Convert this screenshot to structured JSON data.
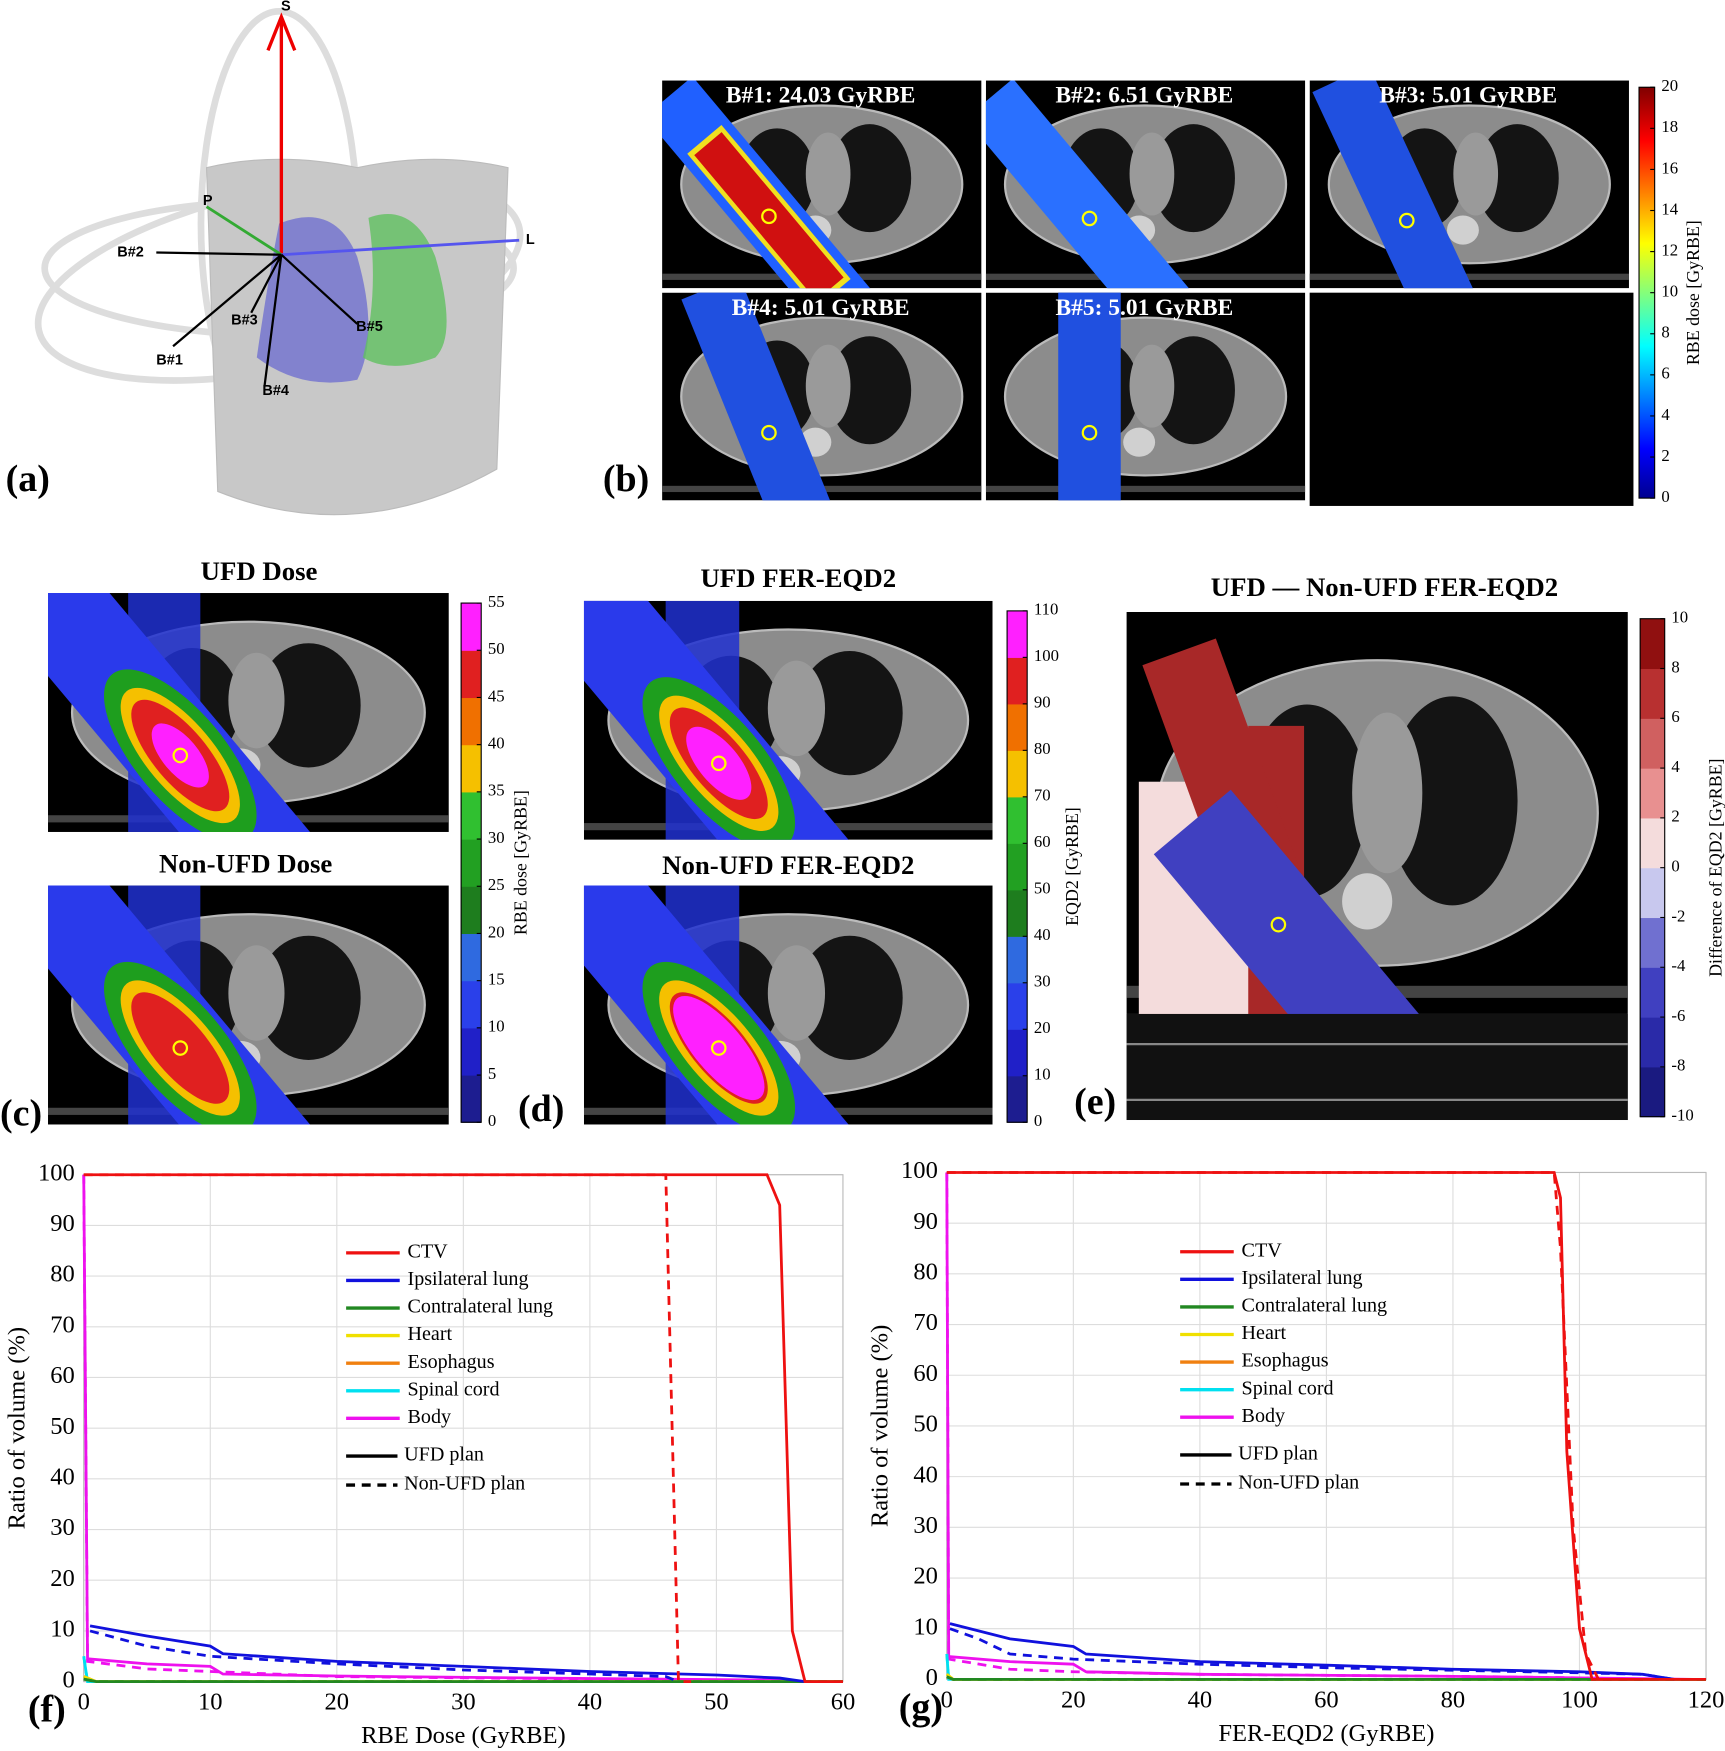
{
  "panels": {
    "a": {
      "label": "(a)",
      "axes": [
        "S",
        "P",
        "L"
      ],
      "beams": [
        "B#2",
        "B#3",
        "B#5",
        "B#1",
        "B#4"
      ]
    },
    "b": {
      "label": "(b)",
      "beams": [
        "B#1: 24.03 GyRBE",
        "B#2: 6.51 GyRBE",
        "B#3: 5.01 GyRBE",
        "B#4: 5.01 GyRBE",
        "B#5: 5.01 GyRBE"
      ],
      "colorbar": {
        "label": "RBE dose [GyRBE]",
        "lim": [
          0,
          20
        ],
        "ticks": [
          0,
          2,
          4,
          6,
          8,
          10,
          12,
          14,
          16,
          18,
          20
        ]
      }
    },
    "c": {
      "label": "(c)",
      "titles": [
        "UFD Dose",
        "Non-UFD Dose"
      ],
      "colorbar": {
        "label": "RBE dose [GyRBE]",
        "lim": [
          0,
          55
        ],
        "ticks": [
          0,
          5,
          10,
          15,
          20,
          25,
          30,
          35,
          40,
          45,
          50,
          55
        ]
      }
    },
    "d": {
      "label": "(d)",
      "titles": [
        "UFD FER-EQD2",
        "Non-UFD FER-EQD2"
      ],
      "colorbar": {
        "label": "EQD2 [GyRBE]",
        "lim": [
          0,
          110
        ],
        "ticks": [
          0,
          10,
          20,
          30,
          40,
          50,
          60,
          70,
          80,
          90,
          100,
          110
        ]
      }
    },
    "e": {
      "label": "(e)",
      "title": "UFD — Non-UFD FER-EQD2",
      "colorbar": {
        "label": "Difference of EQD2 [GyRBE]",
        "lim": [
          -10,
          10
        ],
        "ticks": [
          -10,
          -8,
          -6,
          -4,
          -2,
          0,
          2,
          4,
          6,
          8,
          10
        ]
      }
    }
  },
  "chart_data": [
    {
      "type": "line",
      "panel_label": "(f)",
      "xlabel": "RBE Dose (GyRBE)",
      "ylabel": "Ratio of volume (%)",
      "xlim": [
        0,
        60
      ],
      "ylim": [
        0,
        100
      ],
      "xticks": [
        0,
        10,
        20,
        30,
        40,
        50,
        60
      ],
      "yticks": [
        0,
        10,
        20,
        30,
        40,
        50,
        60,
        70,
        80,
        90,
        100
      ],
      "grid": true,
      "series": [
        {
          "name": "CTV",
          "plan": "UFD plan",
          "color": "#ee1111",
          "dashed": false,
          "x": [
            0,
            54,
            55,
            56,
            57,
            60
          ],
          "values": [
            100,
            100,
            94,
            10,
            0,
            0
          ]
        },
        {
          "name": "CTV",
          "plan": "Non-UFD plan",
          "color": "#ee1111",
          "dashed": true,
          "x": [
            0,
            46,
            47,
            48
          ],
          "values": [
            100,
            100,
            0,
            0
          ]
        },
        {
          "name": "Ipsilateral lung",
          "plan": "UFD plan",
          "color": "#1111dd",
          "dashed": false,
          "x": [
            0.5,
            5,
            10,
            11,
            20,
            30,
            40,
            50,
            55,
            57
          ],
          "values": [
            11,
            9,
            7,
            5.5,
            4,
            3,
            2,
            1.3,
            0.7,
            0
          ]
        },
        {
          "name": "Ipsilateral lung",
          "plan": "Non-UFD plan",
          "color": "#1111dd",
          "dashed": true,
          "x": [
            0.5,
            5,
            10,
            20,
            30,
            40,
            46,
            47
          ],
          "values": [
            10,
            7,
            5,
            3.5,
            2.3,
            1.5,
            1,
            0
          ]
        },
        {
          "name": "Contralateral lung",
          "plan": "UFD plan",
          "color": "#228822",
          "dashed": false,
          "x": [
            0,
            1,
            60
          ],
          "values": [
            0.5,
            0,
            0
          ]
        },
        {
          "name": "Contralateral lung",
          "plan": "Non-UFD plan",
          "color": "#228822",
          "dashed": true,
          "x": [
            0,
            1,
            60
          ],
          "values": [
            0.5,
            0,
            0
          ]
        },
        {
          "name": "Heart",
          "plan": "UFD plan",
          "color": "#f0e000",
          "dashed": false,
          "x": [
            0,
            1,
            60
          ],
          "values": [
            1,
            0,
            0
          ]
        },
        {
          "name": "Heart",
          "plan": "Non-UFD plan",
          "color": "#f0e000",
          "dashed": true,
          "x": [
            0,
            1,
            60
          ],
          "values": [
            1,
            0,
            0
          ]
        },
        {
          "name": "Esophagus",
          "plan": "UFD plan",
          "color": "#f08010",
          "dashed": false,
          "x": [
            0,
            1,
            60
          ],
          "values": [
            1,
            0,
            0
          ]
        },
        {
          "name": "Esophagus",
          "plan": "Non-UFD plan",
          "color": "#f08010",
          "dashed": true,
          "x": [
            0,
            1,
            60
          ],
          "values": [
            1,
            0,
            0
          ]
        },
        {
          "name": "Spinal cord",
          "plan": "UFD plan",
          "color": "#00e0f0",
          "dashed": false,
          "x": [
            0,
            0.3,
            60
          ],
          "values": [
            5,
            0,
            0
          ]
        },
        {
          "name": "Spinal cord",
          "plan": "Non-UFD plan",
          "color": "#00e0f0",
          "dashed": true,
          "x": [
            0,
            0.3,
            60
          ],
          "values": [
            5,
            0,
            0
          ]
        },
        {
          "name": "Body",
          "plan": "UFD plan",
          "color": "#ee11ee",
          "dashed": false,
          "x": [
            0,
            0.3,
            5,
            10,
            11,
            20,
            40,
            55,
            57,
            60
          ],
          "values": [
            100,
            4.5,
            3.5,
            3,
            1.5,
            1.1,
            0.6,
            0.3,
            0,
            0
          ]
        },
        {
          "name": "Body",
          "plan": "Non-UFD plan",
          "color": "#ee11ee",
          "dashed": true,
          "x": [
            0,
            0.3,
            5,
            10,
            20,
            40,
            47,
            60
          ],
          "values": [
            100,
            4,
            2.5,
            2,
            1,
            0.5,
            0,
            0
          ]
        }
      ]
    },
    {
      "type": "line",
      "panel_label": "(g)",
      "xlabel": "FER-EQD2 (GyRBE)",
      "ylabel": "Ratio of volume (%)",
      "xlim": [
        0,
        120
      ],
      "ylim": [
        0,
        100
      ],
      "xticks": [
        0,
        20,
        40,
        60,
        80,
        100,
        120
      ],
      "yticks": [
        0,
        10,
        20,
        30,
        40,
        50,
        60,
        70,
        80,
        90,
        100
      ],
      "grid": true,
      "series": [
        {
          "name": "CTV",
          "plan": "UFD plan",
          "color": "#ee1111",
          "dashed": false,
          "x": [
            0,
            96,
            97,
            98,
            100,
            102,
            120
          ],
          "values": [
            100,
            100,
            95,
            45,
            10,
            0,
            0
          ]
        },
        {
          "name": "CTV",
          "plan": "Non-UFD plan",
          "color": "#ee1111",
          "dashed": true,
          "x": [
            0,
            96,
            97,
            99,
            101,
            103
          ],
          "values": [
            100,
            100,
            85,
            30,
            5,
            0
          ]
        },
        {
          "name": "Ipsilateral lung",
          "plan": "UFD plan",
          "color": "#1111dd",
          "dashed": false,
          "x": [
            0.5,
            10,
            20,
            22,
            40,
            60,
            80,
            100,
            110,
            115
          ],
          "values": [
            11,
            8,
            6.5,
            5,
            3.5,
            2.8,
            2,
            1.5,
            1,
            0
          ]
        },
        {
          "name": "Ipsilateral lung",
          "plan": "Non-UFD plan",
          "color": "#1111dd",
          "dashed": true,
          "x": [
            0.5,
            5,
            10,
            20,
            40,
            60,
            80,
            100,
            110,
            115
          ],
          "values": [
            10,
            8,
            5,
            4,
            3,
            2.3,
            1.8,
            1.3,
            1,
            0
          ]
        },
        {
          "name": "Contralateral lung",
          "plan": "UFD plan",
          "color": "#228822",
          "dashed": false,
          "x": [
            0,
            1,
            120
          ],
          "values": [
            0.5,
            0,
            0
          ]
        },
        {
          "name": "Contralateral lung",
          "plan": "Non-UFD plan",
          "color": "#228822",
          "dashed": true,
          "x": [
            0,
            1,
            120
          ],
          "values": [
            0.5,
            0,
            0
          ]
        },
        {
          "name": "Heart",
          "plan": "UFD plan",
          "color": "#f0e000",
          "dashed": false,
          "x": [
            0,
            1,
            120
          ],
          "values": [
            1,
            0,
            0
          ]
        },
        {
          "name": "Heart",
          "plan": "Non-UFD plan",
          "color": "#f0e000",
          "dashed": true,
          "x": [
            0,
            1,
            120
          ],
          "values": [
            1,
            0,
            0
          ]
        },
        {
          "name": "Esophagus",
          "plan": "UFD plan",
          "color": "#f08010",
          "dashed": false,
          "x": [
            0,
            1,
            120
          ],
          "values": [
            1,
            0,
            0
          ]
        },
        {
          "name": "Esophagus",
          "plan": "Non-UFD plan",
          "color": "#f08010",
          "dashed": true,
          "x": [
            0,
            1,
            120
          ],
          "values": [
            1,
            0,
            0
          ]
        },
        {
          "name": "Spinal cord",
          "plan": "UFD plan",
          "color": "#00e0f0",
          "dashed": false,
          "x": [
            0,
            0.3,
            120
          ],
          "values": [
            5,
            0,
            0
          ]
        },
        {
          "name": "Spinal cord",
          "plan": "Non-UFD plan",
          "color": "#00e0f0",
          "dashed": true,
          "x": [
            0,
            0.3,
            120
          ],
          "values": [
            5,
            0,
            0
          ]
        },
        {
          "name": "Body",
          "plan": "UFD plan",
          "color": "#ee11ee",
          "dashed": false,
          "x": [
            0,
            0.3,
            10,
            20,
            22,
            40,
            80,
            100,
            118
          ],
          "values": [
            100,
            4.5,
            3.5,
            3,
            1.5,
            1,
            0.6,
            0.3,
            0
          ]
        },
        {
          "name": "Body",
          "plan": "Non-UFD plan",
          "color": "#ee11ee",
          "dashed": true,
          "x": [
            0,
            0.3,
            10,
            20,
            40,
            80,
            100,
            110
          ],
          "values": [
            100,
            4,
            2,
            1.5,
            1,
            0.6,
            0.3,
            0
          ]
        }
      ]
    }
  ]
}
